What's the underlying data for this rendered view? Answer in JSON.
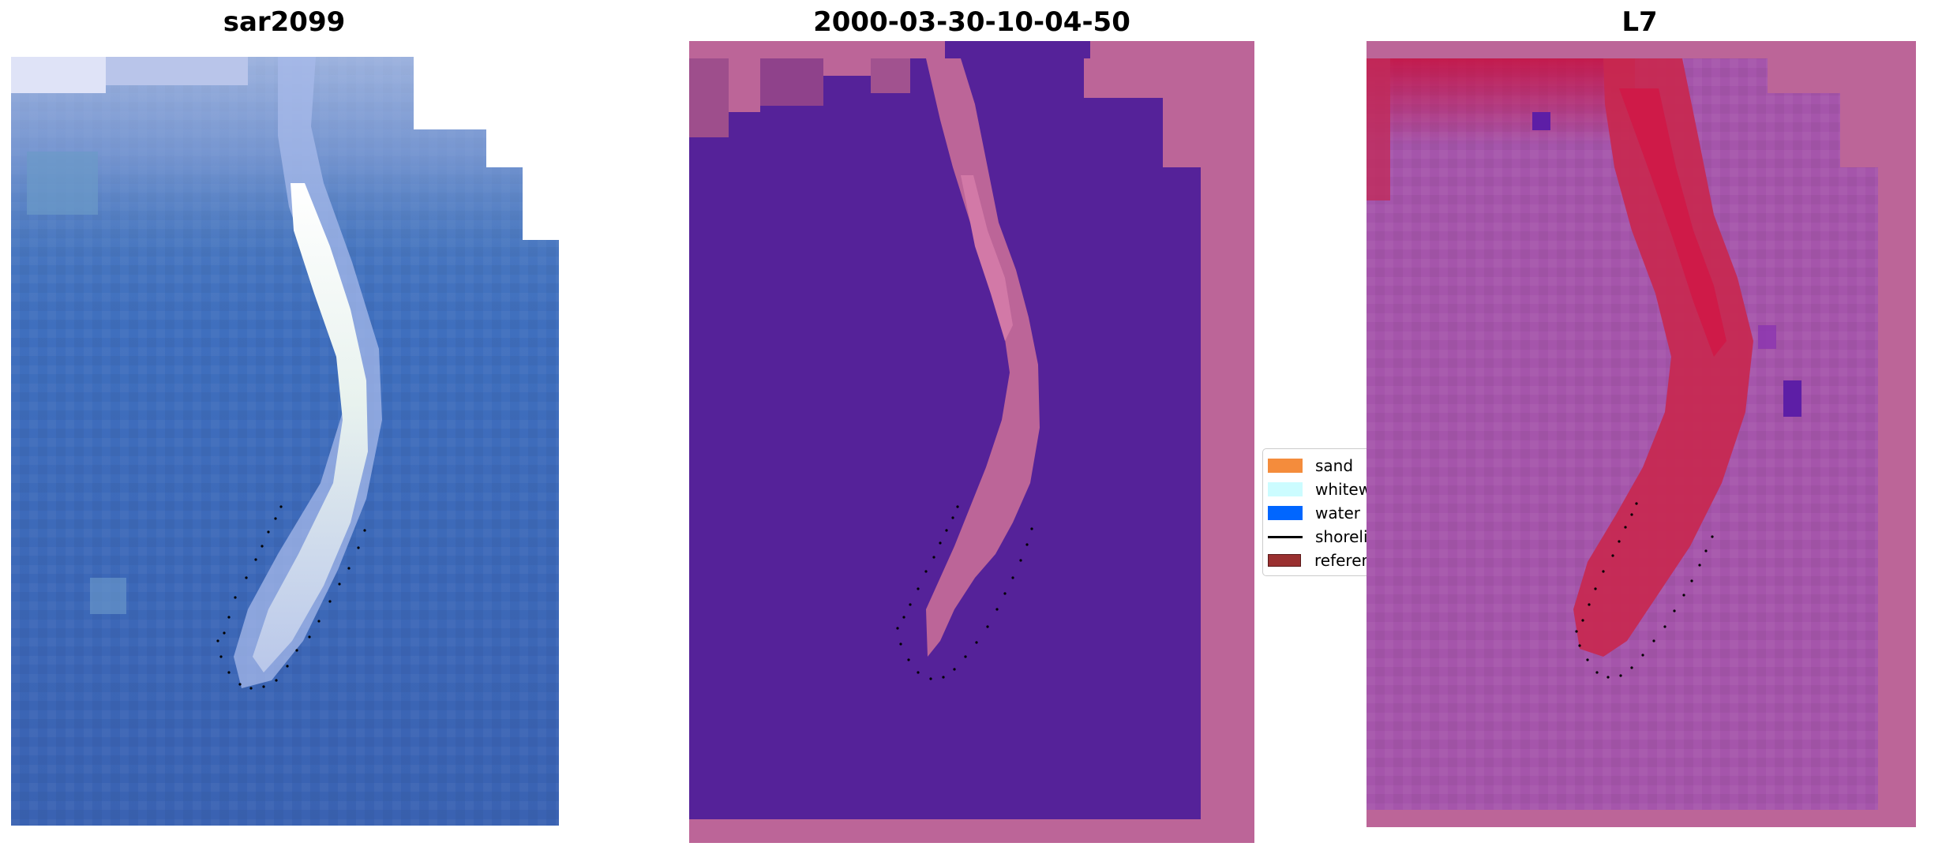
{
  "panels": [
    {
      "title": "sar2099"
    },
    {
      "title": "2000-03-30-10-04-50"
    },
    {
      "title": "L7"
    }
  ],
  "legend": {
    "items": [
      {
        "label": "sand",
        "color": "#f48c3c"
      },
      {
        "label": "whitewater",
        "color": "#ccfcff"
      },
      {
        "label": "water",
        "color": "#0066ff"
      },
      {
        "label": "shoreline",
        "color": "#000000"
      },
      {
        "label": "reference shoreline",
        "color": "#9a3030"
      }
    ]
  },
  "colors": {
    "rgb_water": "#3d6abb",
    "classified_water": "#552299",
    "classified_land": "#bc6598",
    "index_background": "#a555ab",
    "index_high": "#c8103c"
  }
}
